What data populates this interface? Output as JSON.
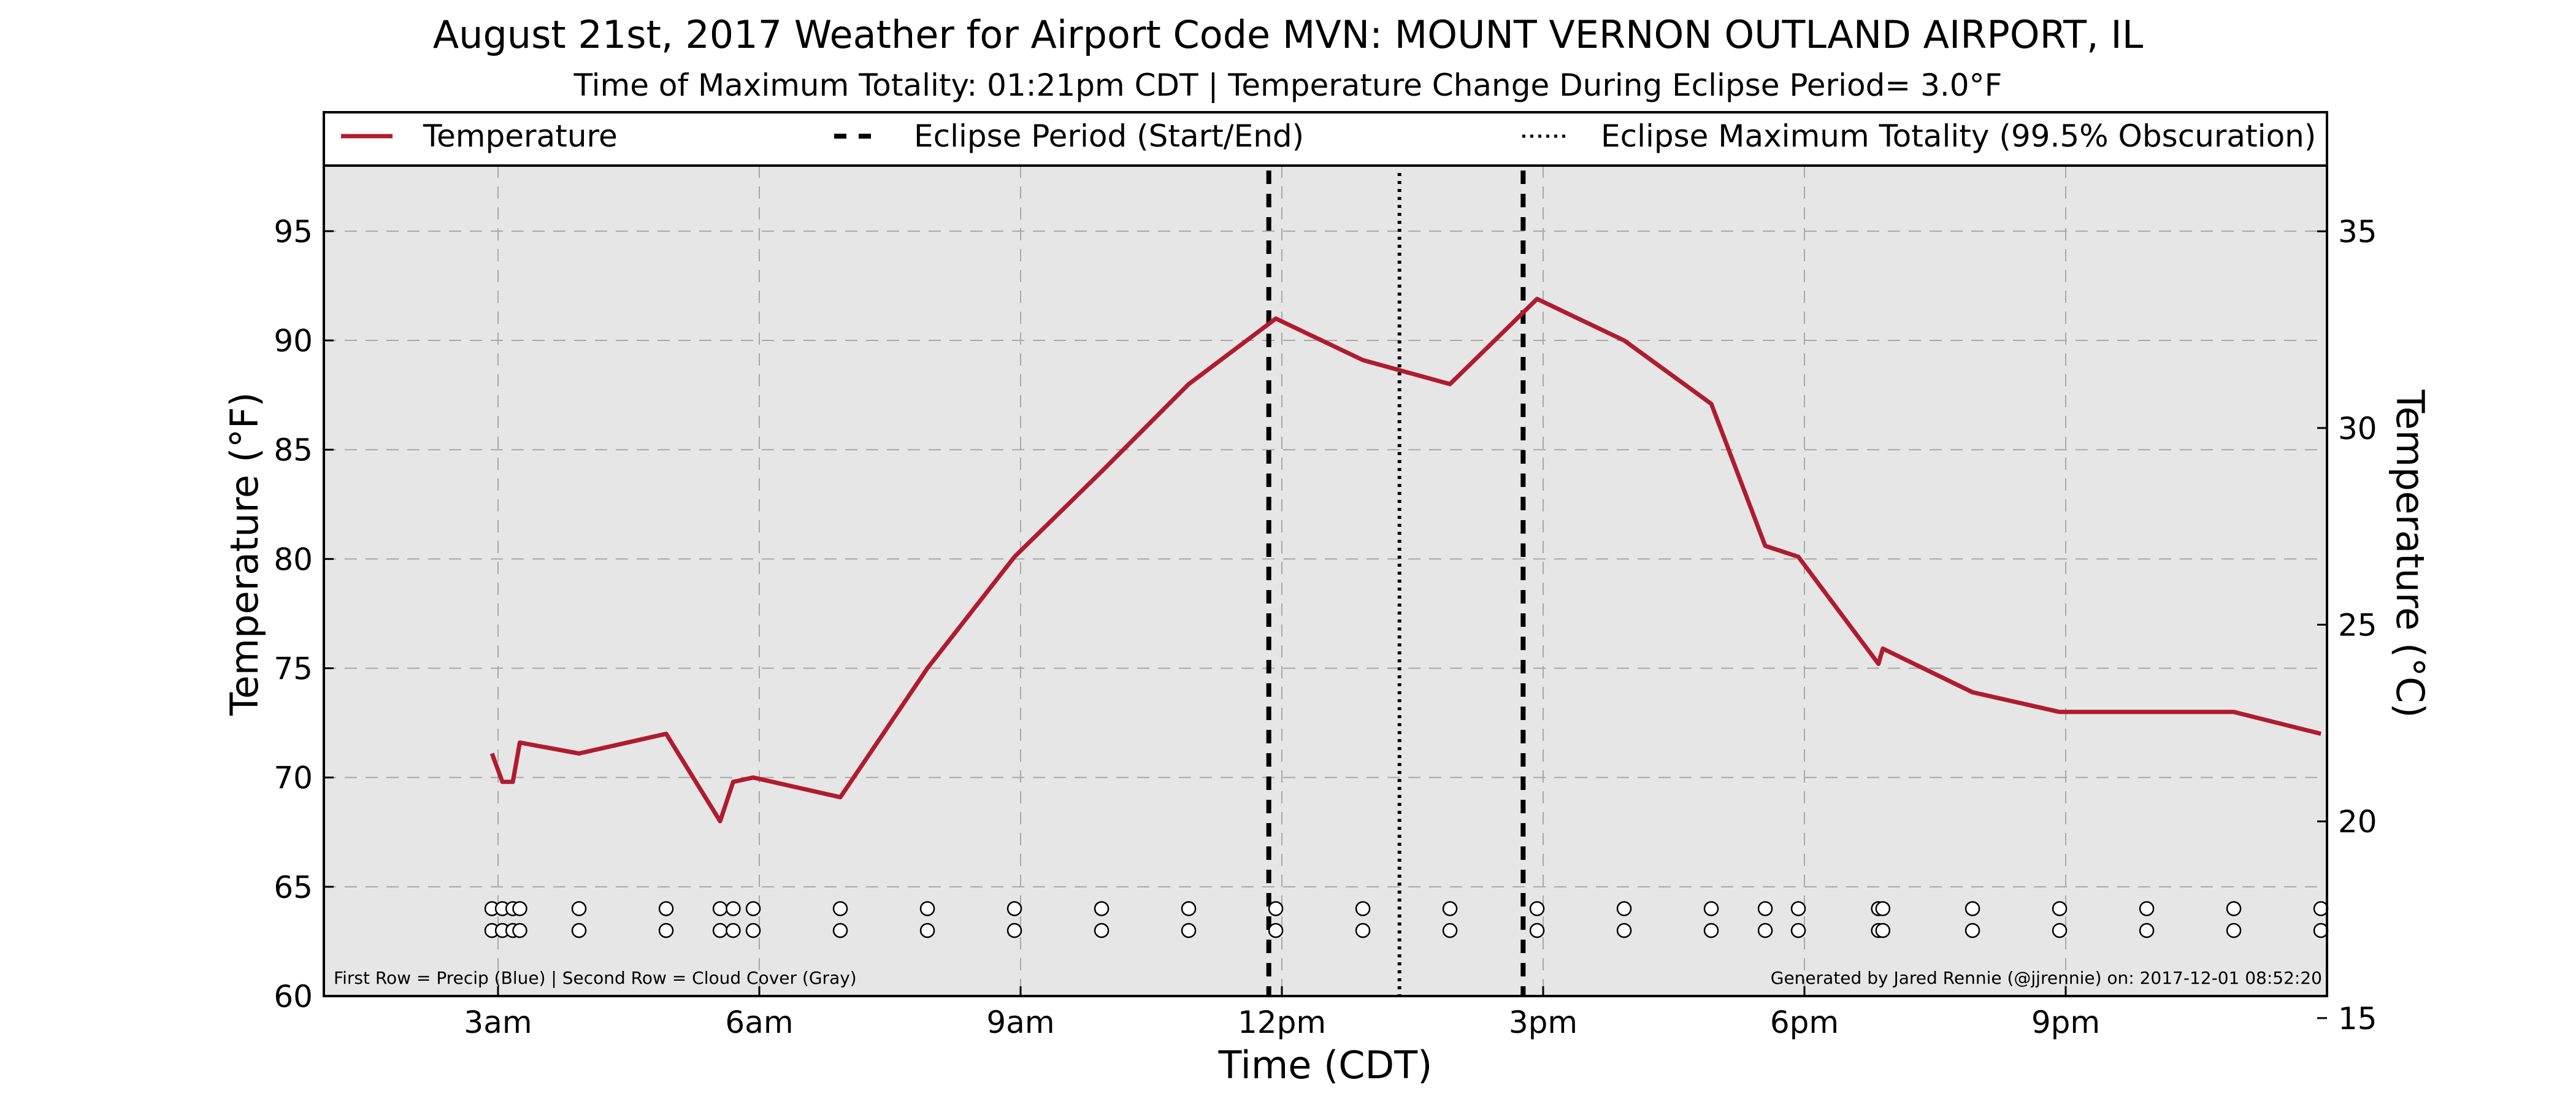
{
  "chart_data": {
    "type": "line",
    "title": "August 21st, 2017 Weather for Airport Code MVN: MOUNT VERNON OUTLAND AIRPORT, IL",
    "subtitle": "Time of Maximum Totality: 01:21pm CDT | Temperature Change During Eclipse Period= 3.0°F",
    "xlabel": "Time (CDT)",
    "ylabel": "Temperature (°F)",
    "y2label": "Temperature (°C)",
    "xlim": [
      1.0,
      24.0
    ],
    "ylim": [
      60,
      98
    ],
    "y2lim": [
      15.56,
      36.67
    ],
    "x_ticks": [
      {
        "x": 3,
        "label": "3am"
      },
      {
        "x": 6,
        "label": "6am"
      },
      {
        "x": 9,
        "label": "9am"
      },
      {
        "x": 12,
        "label": "12pm"
      },
      {
        "x": 15,
        "label": "3pm"
      },
      {
        "x": 18,
        "label": "6pm"
      },
      {
        "x": 21,
        "label": "9pm"
      }
    ],
    "y_ticks": [
      60,
      65,
      70,
      75,
      80,
      85,
      90,
      95
    ],
    "y2_ticks": [
      15,
      20,
      25,
      30,
      35
    ],
    "grid": true,
    "background": "#e6e6e6",
    "legend_position": "top",
    "legend": [
      {
        "label": "Temperature",
        "style": "solid",
        "color": "#b01b2e"
      },
      {
        "label": "Eclipse Period (Start/End)",
        "style": "dashed",
        "color": "#000000"
      },
      {
        "label": "Eclipse Maximum Totality (99.5% Obscuration)",
        "style": "dotted",
        "color": "#000000"
      }
    ],
    "series": [
      {
        "name": "Temperature",
        "color": "#b01b2e",
        "points": [
          [
            2.93,
            71.1
          ],
          [
            3.05,
            69.8
          ],
          [
            3.17,
            69.8
          ],
          [
            3.25,
            71.6
          ],
          [
            3.93,
            71.1
          ],
          [
            4.93,
            72.0
          ],
          [
            5.55,
            68.0
          ],
          [
            5.7,
            69.8
          ],
          [
            5.93,
            70.0
          ],
          [
            6.93,
            69.1
          ],
          [
            7.93,
            75.0
          ],
          [
            8.93,
            80.1
          ],
          [
            9.93,
            84.0
          ],
          [
            10.93,
            88.0
          ],
          [
            11.93,
            91.0
          ],
          [
            12.93,
            89.1
          ],
          [
            13.93,
            88.0
          ],
          [
            14.93,
            91.9
          ],
          [
            15.93,
            90.0
          ],
          [
            16.93,
            87.1
          ],
          [
            17.55,
            80.6
          ],
          [
            17.93,
            80.1
          ],
          [
            18.85,
            75.2
          ],
          [
            18.9,
            75.9
          ],
          [
            19.93,
            73.9
          ],
          [
            20.93,
            73.0
          ],
          [
            21.93,
            73.0
          ],
          [
            22.93,
            73.0
          ],
          [
            23.93,
            72.0
          ]
        ]
      }
    ],
    "eclipse_period": {
      "start": 11.85,
      "end": 14.77,
      "color": "#000000",
      "style": "dashed"
    },
    "eclipse_max": {
      "x": 13.35,
      "color": "#000000",
      "style": "dotted"
    },
    "markers": {
      "row1_y": 64.0,
      "row2_y": 63.0,
      "x": [
        2.93,
        3.05,
        3.17,
        3.25,
        3.93,
        4.93,
        5.55,
        5.7,
        5.93,
        6.93,
        7.93,
        8.93,
        9.93,
        10.93,
        11.93,
        12.93,
        13.93,
        14.93,
        15.93,
        16.93,
        17.55,
        17.93,
        18.85,
        18.9,
        19.93,
        20.93,
        21.93,
        22.93,
        23.93
      ]
    },
    "annotation_left": "First Row = Precip (Blue) | Second Row = Cloud Cover (Gray)",
    "annotation_right": "Generated by Jared Rennie (@jjrennie) on: 2017-12-01 08:52:20"
  }
}
